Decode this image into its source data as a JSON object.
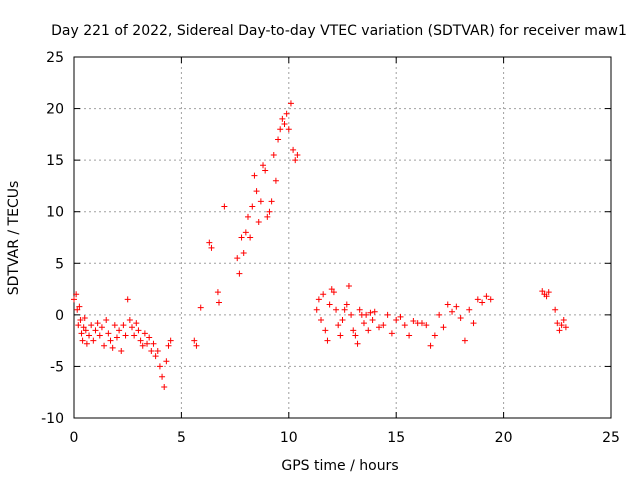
{
  "chart_data": {
    "type": "scatter",
    "title": "Day 221 of 2022, Sidereal Day-to-day VTEC variation (SDTVAR) for receiver maw1",
    "xlabel": "GPS time / hours",
    "ylabel": "SDTVAR / TECUs",
    "xlim": [
      0,
      25
    ],
    "ylim": [
      -10,
      25
    ],
    "x_ticks": [
      0,
      5,
      10,
      15,
      20,
      25
    ],
    "y_ticks": [
      -10,
      -5,
      0,
      5,
      10,
      15,
      20,
      25
    ],
    "x_tick_labels": [
      "0",
      "5",
      "10",
      "15",
      "20",
      "25"
    ],
    "y_tick_labels": [
      "-10",
      "-5",
      "0",
      "5",
      "10",
      "15",
      "20",
      "25"
    ],
    "grid": true,
    "marker": "plus",
    "series": [
      {
        "name": "SDTVAR",
        "color": "#ff0000",
        "x": [
          0.0,
          0.1,
          0.15,
          0.2,
          0.25,
          0.3,
          0.35,
          0.4,
          0.45,
          0.5,
          0.55,
          0.6,
          0.7,
          0.8,
          0.9,
          1.0,
          1.1,
          1.2,
          1.3,
          1.4,
          1.5,
          1.6,
          1.7,
          1.8,
          1.9,
          2.0,
          2.1,
          2.2,
          2.3,
          2.4,
          2.5,
          2.6,
          2.7,
          2.8,
          2.9,
          3.0,
          3.1,
          3.2,
          3.3,
          3.4,
          3.5,
          3.6,
          3.7,
          3.8,
          3.9,
          4.0,
          4.1,
          4.2,
          4.3,
          4.4,
          4.5,
          5.6,
          5.7,
          5.9,
          6.3,
          6.4,
          6.7,
          6.75,
          7.0,
          7.6,
          7.7,
          7.8,
          7.9,
          8.0,
          8.1,
          8.2,
          8.3,
          8.4,
          8.5,
          8.6,
          8.7,
          8.8,
          8.9,
          9.0,
          9.1,
          9.2,
          9.3,
          9.4,
          9.5,
          9.6,
          9.7,
          9.8,
          9.9,
          10.0,
          10.1,
          10.2,
          10.3,
          10.4,
          11.3,
          11.4,
          11.5,
          11.6,
          11.7,
          11.8,
          11.9,
          12.0,
          12.1,
          12.2,
          12.3,
          12.4,
          12.5,
          12.6,
          12.7,
          12.8,
          12.9,
          13.0,
          13.1,
          13.2,
          13.3,
          13.4,
          13.5,
          13.6,
          13.7,
          13.8,
          13.9,
          14.0,
          14.2,
          14.4,
          14.6,
          14.8,
          15.0,
          15.2,
          15.4,
          15.6,
          15.8,
          16.0,
          16.2,
          16.4,
          16.6,
          16.8,
          17.0,
          17.2,
          17.4,
          17.6,
          17.8,
          18.0,
          18.2,
          18.4,
          18.6,
          18.8,
          19.0,
          19.2,
          19.4,
          21.8,
          21.9,
          22.0,
          22.1,
          22.4,
          22.5,
          22.6,
          22.7,
          22.8,
          22.9
        ],
        "y": [
          1.5,
          2.0,
          0.5,
          -1.0,
          0.8,
          -0.5,
          -1.8,
          -2.5,
          -1.2,
          -0.3,
          -1.5,
          -2.8,
          -2.0,
          -1.0,
          -2.5,
          -1.5,
          -0.8,
          -2.0,
          -1.2,
          -3.0,
          -0.5,
          -1.8,
          -2.5,
          -3.2,
          -1.0,
          -2.2,
          -1.5,
          -3.5,
          -1.0,
          -2.0,
          1.5,
          -0.5,
          -1.2,
          -2.0,
          -0.8,
          -1.5,
          -2.5,
          -3.0,
          -1.8,
          -2.8,
          -2.2,
          -3.5,
          -2.8,
          -4.0,
          -3.5,
          -5.0,
          -6.0,
          -7.0,
          -4.5,
          -3.0,
          -2.5,
          -2.5,
          -3.0,
          0.7,
          7.0,
          6.5,
          2.2,
          1.2,
          10.5,
          5.5,
          4.0,
          7.5,
          6.0,
          8.0,
          9.5,
          7.5,
          10.5,
          13.5,
          12.0,
          9.0,
          11.0,
          14.5,
          14.0,
          9.5,
          10.0,
          11.0,
          15.5,
          13.0,
          17.0,
          18.0,
          19.0,
          18.5,
          19.5,
          18.0,
          20.5,
          16.0,
          15.0,
          15.5,
          0.5,
          1.5,
          -0.5,
          2.0,
          -1.5,
          -2.5,
          1.0,
          2.5,
          2.2,
          0.5,
          -1.0,
          -2.0,
          -0.5,
          0.5,
          1.0,
          2.8,
          0.0,
          -1.5,
          -2.0,
          -2.8,
          0.5,
          0.0,
          -0.8,
          0.0,
          -1.5,
          0.2,
          -0.5,
          0.3,
          -1.2,
          -1.0,
          0.0,
          -1.8,
          -0.5,
          -0.2,
          -1.0,
          -2.0,
          -0.6,
          -0.8,
          -0.8,
          -1.0,
          -3.0,
          -2.0,
          0.0,
          -1.2,
          1.0,
          0.3,
          0.8,
          -0.3,
          -2.5,
          0.5,
          -0.8,
          1.5,
          1.2,
          1.8,
          1.5,
          2.3,
          2.0,
          1.8,
          2.2,
          0.5,
          -0.8,
          -1.5,
          -1.0,
          -0.5,
          -1.2
        ]
      }
    ]
  }
}
